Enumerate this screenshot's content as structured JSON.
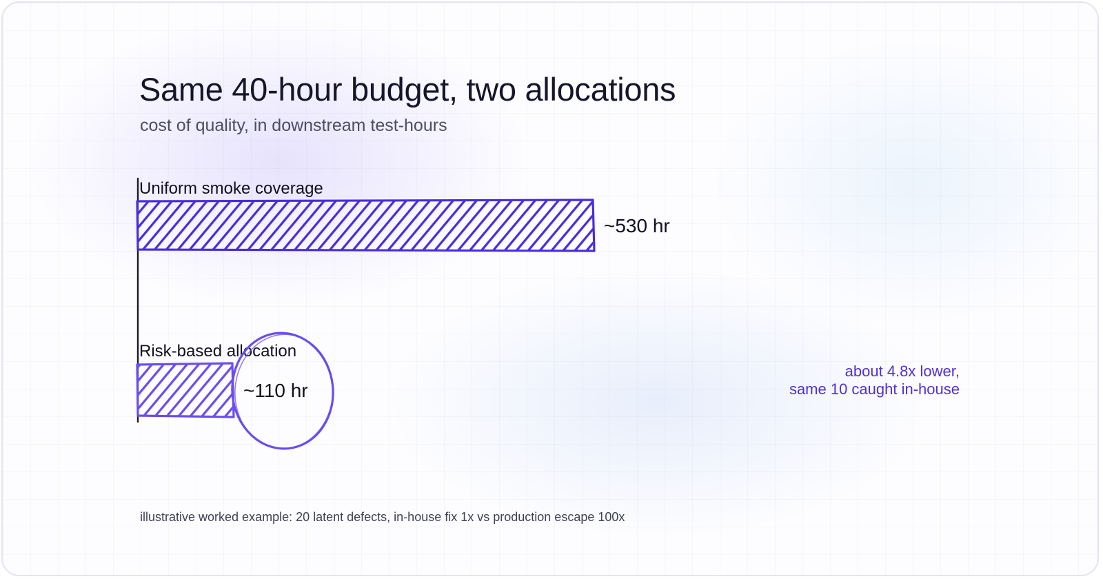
{
  "title": "Same 40-hour budget, two allocations",
  "subtitle": "cost of quality, in downstream test-hours",
  "chart_data": {
    "type": "bar",
    "orientation": "horizontal",
    "categories": [
      "Uniform smoke coverage",
      "Risk-based allocation"
    ],
    "values": [
      530,
      110
    ],
    "value_labels": [
      "~530 hr",
      "~110 hr"
    ],
    "colors": [
      "#4a2be0",
      "#6a4cf0"
    ],
    "highlight": "Risk-based allocation",
    "unit": "hr"
  },
  "annotation": {
    "line1": "about 4.8x lower,",
    "line2": "same 10 caught in-house",
    "color": "#5030d8"
  },
  "footnote": "illustrative worked example: 20 latent defects, in-house fix 1x vs production escape 100x"
}
